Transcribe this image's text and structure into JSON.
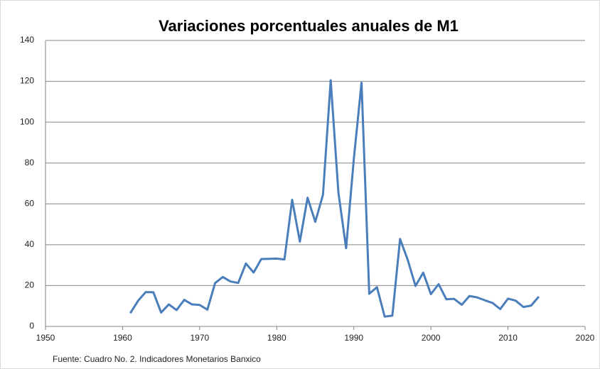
{
  "chart_data": {
    "type": "line",
    "title": "Variaciones porcentuales anuales de M1",
    "note": "Fuente: Cuadro No. 2.  Indicadores Monetarios Banxico",
    "x": [
      1961,
      1962,
      1963,
      1964,
      1965,
      1966,
      1967,
      1968,
      1969,
      1970,
      1971,
      1972,
      1973,
      1974,
      1975,
      1976,
      1977,
      1978,
      1979,
      1980,
      1981,
      1982,
      1983,
      1984,
      1985,
      1986,
      1987,
      1988,
      1989,
      1990,
      1991,
      1992,
      1993,
      1994,
      1995,
      1996,
      1997,
      1998,
      1999,
      2000,
      2001,
      2002,
      2003,
      2004,
      2005,
      2006,
      2007,
      2008,
      2009,
      2010,
      2011,
      2012,
      2013,
      2014
    ],
    "series": [
      {
        "name": "M1",
        "color": "#4a7ebb",
        "values": [
          6.5,
          12.5,
          16.8,
          16.7,
          6.8,
          10.8,
          8.0,
          13.0,
          10.8,
          10.5,
          8.2,
          21.2,
          24.2,
          22.0,
          21.3,
          30.8,
          26.4,
          33.0,
          33.1,
          33.2,
          32.8,
          62.0,
          41.5,
          63.0,
          51.2,
          64.5,
          120.5,
          65.5,
          38.3,
          82.0,
          119.3,
          16.0,
          19.2,
          4.8,
          5.3,
          42.8,
          32.5,
          19.8,
          26.3,
          15.8,
          20.7,
          13.3,
          13.5,
          10.6,
          14.9,
          14.2,
          12.8,
          11.5,
          8.5,
          13.6,
          12.6,
          9.5,
          10.2,
          14.6
        ]
      }
    ],
    "xlim": [
      1950,
      2020
    ],
    "xticks": [
      1950,
      1960,
      1970,
      1980,
      1990,
      2000,
      2010,
      2020
    ],
    "ylim": [
      0,
      140
    ],
    "yticks": [
      0,
      20,
      40,
      60,
      80,
      100,
      120,
      140
    ],
    "grid": true
  }
}
